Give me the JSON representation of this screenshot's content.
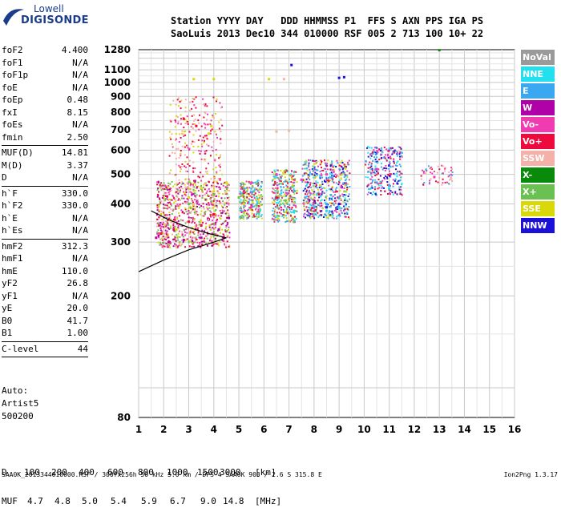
{
  "logo": {
    "brand": "Lowell",
    "product": "DIGISONDE"
  },
  "header": {
    "line1": "Station YYYY DAY   DDD HHMMSS P1  FFS S AXN PPS IGA PS",
    "line2": "SaoLuis 2013 Dec10 344 010000 RSF 005 2 713 100 10+ 22"
  },
  "params": [
    {
      "name": "foF2",
      "value": "4.400"
    },
    {
      "name": "foF1",
      "value": "N/A"
    },
    {
      "name": "foF1p",
      "value": "N/A"
    },
    {
      "name": "foE",
      "value": "N/A"
    },
    {
      "name": "foEp",
      "value": "0.48"
    },
    {
      "name": "fxI",
      "value": "8.15"
    },
    {
      "name": "foEs",
      "value": "N/A"
    },
    {
      "name": "fmin",
      "value": "2.50"
    },
    {
      "name": "MUF(D)",
      "value": "14.81",
      "sep": true
    },
    {
      "name": "M(D)",
      "value": "3.37"
    },
    {
      "name": "D",
      "value": "N/A"
    },
    {
      "name": "h`F",
      "value": "330.0",
      "sep": true
    },
    {
      "name": "h`F2",
      "value": "330.0"
    },
    {
      "name": "h`E",
      "value": "N/A"
    },
    {
      "name": "h`Es",
      "value": "N/A"
    },
    {
      "name": "hmF2",
      "value": "312.3",
      "sep": true
    },
    {
      "name": "hmF1",
      "value": "N/A"
    },
    {
      "name": "hmE",
      "value": "110.0"
    },
    {
      "name": "yF2",
      "value": "26.8"
    },
    {
      "name": "yF1",
      "value": "N/A"
    },
    {
      "name": "yE",
      "value": "20.0"
    },
    {
      "name": "B0",
      "value": "41.7"
    },
    {
      "name": "B1",
      "value": "1.00"
    },
    {
      "name": "C-level",
      "value": "44",
      "sep": true
    }
  ],
  "extra": {
    "auto_label": "Auto:",
    "artist": "Artist5",
    "version_code": "500200"
  },
  "muf_table": {
    "d_label": "D",
    "d_values": [
      "100",
      "200",
      "400",
      "600",
      "800",
      "1000",
      "1500",
      "3000"
    ],
    "d_unit": "[km]",
    "muf_label": "MUF",
    "muf_values": [
      "4.7",
      "4.8",
      "5.0",
      "5.4",
      "5.9",
      "6.7",
      "9.0",
      "14.8"
    ],
    "muf_unit": "[MHz]"
  },
  "footer": {
    "info": "SAA0K_2013344010000.RSF / 300fx256h 50 kHz 5.0 km / DPS-4 SAA0K 903 / 2.6 S 315.8 E",
    "version": "Ion2Png 1.3.17"
  },
  "legend": [
    {
      "label": "NoVal",
      "bg": "#9a9a9a",
      "fg": "#ffffff"
    },
    {
      "label": "NNE",
      "bg": "#22e0ee",
      "fg": "#ffffff"
    },
    {
      "label": "E",
      "bg": "#3aa8f0",
      "fg": "#ffffff"
    },
    {
      "label": "W",
      "bg": "#b000a8",
      "fg": "#ffffff"
    },
    {
      "label": "Vo-",
      "bg": "#f03cb0",
      "fg": "#ffffff"
    },
    {
      "label": "Vo+",
      "bg": "#ee0a3c",
      "fg": "#ffffff"
    },
    {
      "label": "SSW",
      "bg": "#f5b0a8",
      "fg": "#ffffff"
    },
    {
      "label": "X-",
      "bg": "#0a8a0a",
      "fg": "#ffffff"
    },
    {
      "label": "X+",
      "bg": "#6ac050",
      "fg": "#ffffff"
    },
    {
      "label": "SSE",
      "bg": "#d8d80a",
      "fg": "#ffffff"
    },
    {
      "label": "NNW",
      "bg": "#1a10d8",
      "fg": "#ffffff"
    }
  ],
  "chart_data": {
    "type": "scatter",
    "title": "",
    "xlabel": "",
    "ylabel": "",
    "x_scale": "linear",
    "y_scale": "log",
    "xlim": [
      1,
      16
    ],
    "ylim": [
      80,
      1280
    ],
    "x_ticks": [
      1,
      2,
      3,
      4,
      5,
      6,
      7,
      8,
      9,
      10,
      11,
      12,
      13,
      14,
      15,
      16
    ],
    "y_ticks": [
      80,
      200,
      300,
      400,
      500,
      600,
      700,
      800,
      900,
      1000,
      1100,
      1280
    ],
    "grid": true,
    "legend_position": "right",
    "series": [
      {
        "name": "SSE",
        "points": [
          [
            2.5,
            330
          ],
          [
            3.0,
            420
          ],
          [
            3.5,
            450
          ],
          [
            4.0,
            440
          ],
          [
            4.5,
            470
          ],
          [
            5.2,
            400
          ],
          [
            3.2,
            1025
          ],
          [
            4.0,
            1025
          ],
          [
            6.2,
            1025
          ],
          [
            3.8,
            680
          ],
          [
            3.9,
            720
          ]
        ]
      },
      {
        "name": "Vo+",
        "points": [
          [
            2.4,
            330
          ],
          [
            3.0,
            350
          ],
          [
            3.5,
            340
          ],
          [
            4.0,
            370
          ],
          [
            1.9,
            320
          ],
          [
            2.8,
            760
          ],
          [
            3.3,
            720
          ],
          [
            6.5,
            420
          ],
          [
            8.2,
            430
          ]
        ]
      },
      {
        "name": "W",
        "points": [
          [
            1.7,
            310
          ],
          [
            2.2,
            300
          ],
          [
            2.8,
            305
          ],
          [
            3.5,
            310
          ],
          [
            4.2,
            330
          ],
          [
            4.6,
            360
          ]
        ]
      },
      {
        "name": "NNE",
        "points": [
          [
            7.2,
            380
          ],
          [
            8.0,
            370
          ],
          [
            8.5,
            380
          ],
          [
            9.0,
            390
          ],
          [
            11.0,
            450
          ]
        ]
      },
      {
        "name": "E",
        "points": [
          [
            8.0,
            390
          ],
          [
            8.5,
            400
          ],
          [
            9.0,
            420
          ],
          [
            10.5,
            470
          ],
          [
            11.0,
            460
          ]
        ]
      },
      {
        "name": "NNW",
        "points": [
          [
            8.5,
            390
          ],
          [
            9.0,
            400
          ],
          [
            9.2,
            1040
          ],
          [
            9.0,
            1035
          ],
          [
            7.1,
            1140
          ]
        ]
      },
      {
        "name": "Vo-",
        "points": [
          [
            5.5,
            470
          ],
          [
            6.5,
            500
          ],
          [
            7.5,
            480
          ],
          [
            8.5,
            500
          ],
          [
            10.5,
            520
          ],
          [
            12.8,
            490
          ]
        ]
      },
      {
        "name": "SSW",
        "points": [
          [
            6.5,
            690
          ],
          [
            7.0,
            695
          ],
          [
            6.8,
            1025
          ]
        ]
      },
      {
        "name": "X+",
        "points": [
          [
            3.0,
            400
          ],
          [
            4.0,
            430
          ],
          [
            5.0,
            420
          ]
        ]
      },
      {
        "name": "X-",
        "points": [
          [
            13.0,
            1275
          ]
        ]
      }
    ],
    "trace_curves": [
      {
        "points": [
          [
            1,
            240
          ],
          [
            2,
            262
          ],
          [
            3,
            283
          ],
          [
            4,
            300
          ],
          [
            4.5,
            310
          ]
        ]
      },
      {
        "points": [
          [
            1.5,
            380
          ],
          [
            2.2,
            355
          ],
          [
            3.0,
            335
          ],
          [
            3.8,
            320
          ],
          [
            4.5,
            310
          ]
        ]
      }
    ]
  }
}
